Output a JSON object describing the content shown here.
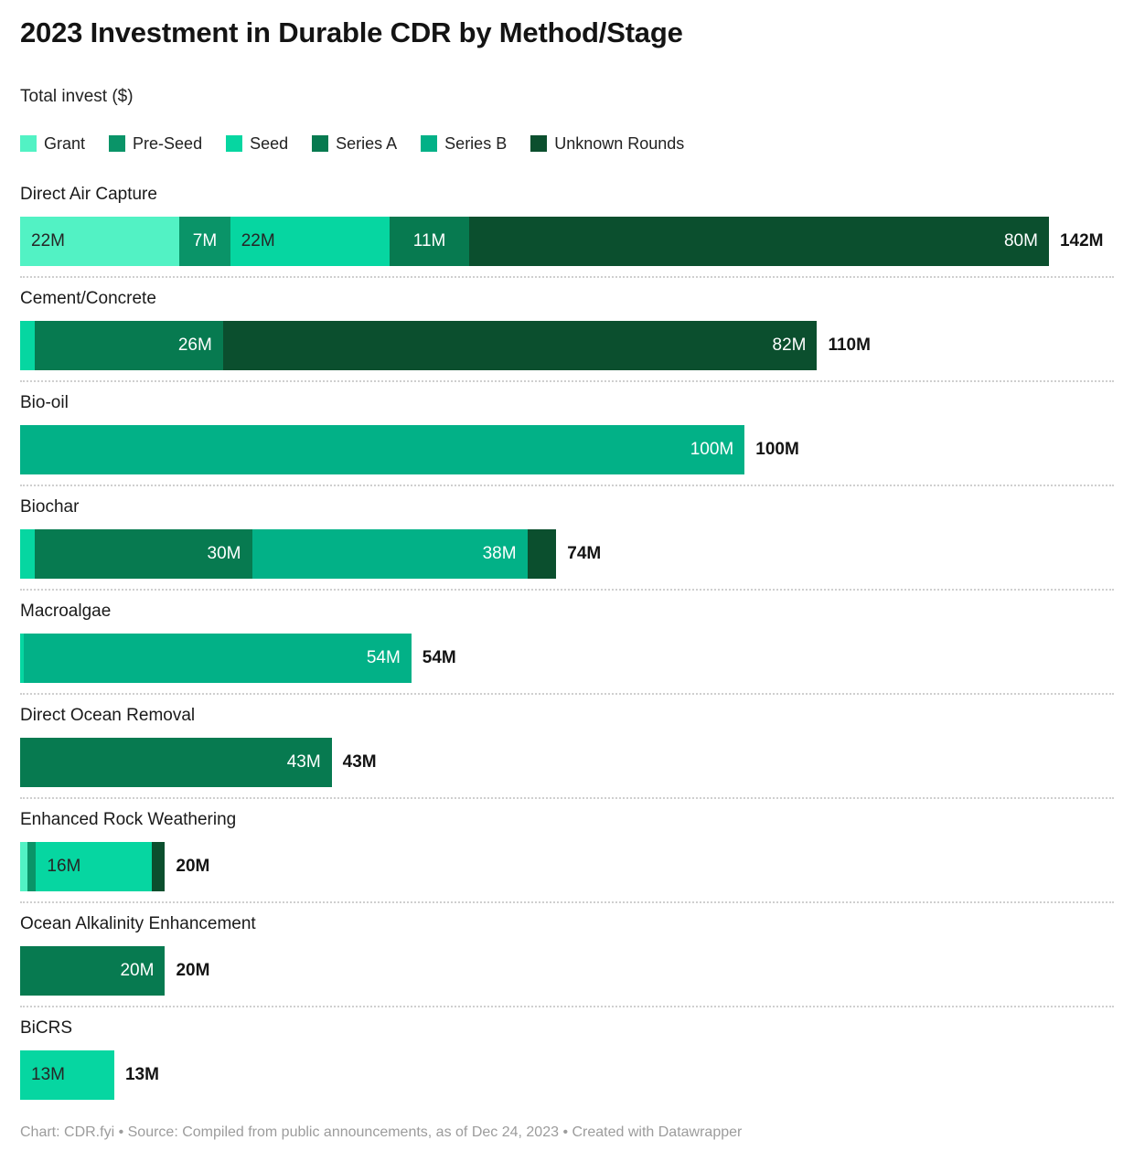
{
  "page": {
    "title": "2023 Investment in Durable CDR by Method/Stage",
    "subtitle": "Total invest ($)",
    "footer": "Chart: CDR.fyi • Source: Compiled from public announcements, as of Dec 24, 2023 • Created with Datawrapper"
  },
  "palette": {
    "Grant": "#52F2C4",
    "Pre-Seed": "#0A9468",
    "Seed": "#06D6A1",
    "Series A": "#077A50",
    "Series B": "#02B187",
    "Unknown Rounds": "#0B4F2E"
  },
  "label_text_colors": {
    "Grant": "dark",
    "Pre-Seed": "white",
    "Seed": "dark",
    "Series A": "white",
    "Series B": "white",
    "Unknown Rounds": "white"
  },
  "chart_data": {
    "type": "bar",
    "variant": "horizontal-stacked",
    "title": "2023 Investment in Durable CDR by Method/Stage",
    "subtitle": "Total invest ($)",
    "unit": "M (USD millions)",
    "axis_max": 142,
    "grid": false,
    "legend_position": "top",
    "legend": [
      "Grant",
      "Pre-Seed",
      "Seed",
      "Series A",
      "Series B",
      "Unknown Rounds"
    ],
    "categories": [
      {
        "label": "Direct Air Capture",
        "total_value": 142,
        "total_label": "142M",
        "segments": [
          {
            "series": "Grant",
            "value": 22,
            "label": "22M",
            "align": "left"
          },
          {
            "series": "Pre-Seed",
            "value": 7,
            "label": "7M",
            "align": "center"
          },
          {
            "series": "Seed",
            "value": 22,
            "label": "22M",
            "align": "left"
          },
          {
            "series": "Series A",
            "value": 11,
            "label": "11M",
            "align": "center"
          },
          {
            "series": "Unknown Rounds",
            "value": 80,
            "label": "80M",
            "align": "right"
          }
        ]
      },
      {
        "label": "Cement/Concrete",
        "total_value": 110,
        "total_label": "110M",
        "segments": [
          {
            "series": "Seed",
            "value": 2,
            "label": "",
            "align": "center"
          },
          {
            "series": "Series A",
            "value": 26,
            "label": "26M",
            "align": "right"
          },
          {
            "series": "Unknown Rounds",
            "value": 82,
            "label": "82M",
            "align": "right"
          }
        ]
      },
      {
        "label": "Bio-oil",
        "total_value": 100,
        "total_label": "100M",
        "segments": [
          {
            "series": "Series B",
            "value": 100,
            "label": "100M",
            "align": "right"
          }
        ]
      },
      {
        "label": "Biochar",
        "total_value": 74,
        "total_label": "74M",
        "segments": [
          {
            "series": "Seed",
            "value": 2,
            "label": "",
            "align": "center"
          },
          {
            "series": "Series A",
            "value": 30,
            "label": "30M",
            "align": "right"
          },
          {
            "series": "Series B",
            "value": 38,
            "label": "38M",
            "align": "right"
          },
          {
            "series": "Unknown Rounds",
            "value": 4,
            "label": "",
            "align": "center"
          }
        ]
      },
      {
        "label": "Macroalgae",
        "total_value": 54,
        "total_label": "54M",
        "segments": [
          {
            "series": "Seed",
            "value": 0.5,
            "label": "",
            "align": "center"
          },
          {
            "series": "Series B",
            "value": 53.5,
            "label": "54M",
            "align": "right"
          }
        ]
      },
      {
        "label": "Direct Ocean Removal",
        "total_value": 43,
        "total_label": "43M",
        "segments": [
          {
            "series": "Series A",
            "value": 43,
            "label": "43M",
            "align": "right"
          }
        ]
      },
      {
        "label": "Enhanced Rock Weathering",
        "total_value": 20,
        "total_label": "20M",
        "segments": [
          {
            "series": "Grant",
            "value": 1,
            "label": "",
            "align": "center"
          },
          {
            "series": "Pre-Seed",
            "value": 1.2,
            "label": "",
            "align": "center"
          },
          {
            "series": "Seed",
            "value": 16,
            "label": "16M",
            "align": "left"
          },
          {
            "series": "Unknown Rounds",
            "value": 1.8,
            "label": "",
            "align": "center"
          }
        ]
      },
      {
        "label": "Ocean Alkalinity Enhancement",
        "total_value": 20,
        "total_label": "20M",
        "segments": [
          {
            "series": "Series A",
            "value": 20,
            "label": "20M",
            "align": "right"
          }
        ]
      },
      {
        "label": "BiCRS",
        "total_value": 13,
        "total_label": "13M",
        "segments": [
          {
            "series": "Seed",
            "value": 13,
            "label": "13M",
            "align": "left"
          }
        ]
      }
    ]
  }
}
